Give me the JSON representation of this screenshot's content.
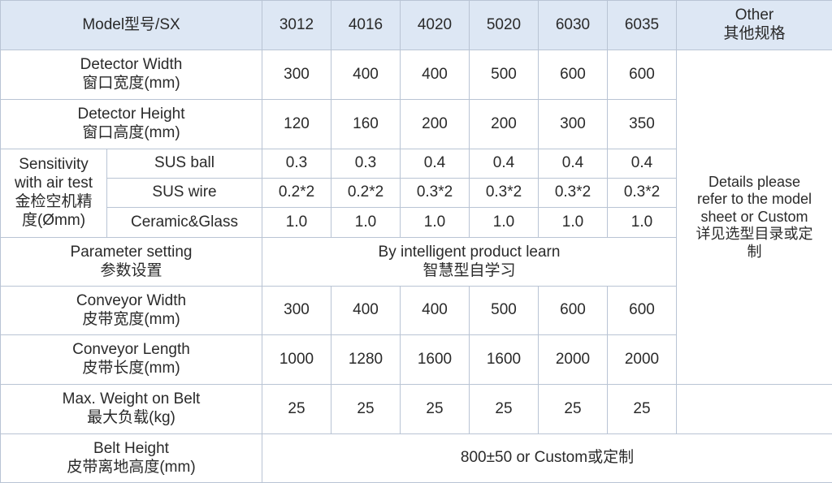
{
  "header": {
    "model": "Model型号/SX",
    "models": [
      "3012",
      "4016",
      "4020",
      "5020",
      "6030",
      "6035"
    ],
    "other_en": "Other",
    "other_cn": "其他规格"
  },
  "other_note": {
    "en1": "Details please",
    "en2": "refer to the model",
    "en3": "sheet or Custom",
    "cn1": "详见选型目录或定",
    "cn2": "制"
  },
  "rows": {
    "detector_width": {
      "en": "Detector Width",
      "cn": "窗口宽度(mm)",
      "values": [
        "300",
        "400",
        "400",
        "500",
        "600",
        "600"
      ]
    },
    "detector_height": {
      "en": "Detector Height",
      "cn": "窗口高度(mm)",
      "values": [
        "120",
        "160",
        "200",
        "200",
        "300",
        "350"
      ]
    },
    "sensitivity": {
      "l1": "Sensitivity",
      "l2": "with air test",
      "l3": "金检空机精",
      "l4": "度(Ømm)",
      "sus_ball": {
        "label": "SUS ball",
        "values": [
          "0.3",
          "0.3",
          "0.4",
          "0.4",
          "0.4",
          "0.4"
        ]
      },
      "sus_wire": {
        "label": "SUS wire",
        "values": [
          "0.2*2",
          "0.2*2",
          "0.3*2",
          "0.3*2",
          "0.3*2",
          "0.3*2"
        ]
      },
      "ceramic": {
        "label": "Ceramic&Glass",
        "values": [
          "1.0",
          "1.0",
          "1.0",
          "1.0",
          "1.0",
          "1.0"
        ]
      }
    },
    "parameter": {
      "en": "Parameter setting",
      "cn": "参数设置",
      "value_en": "By intelligent product learn",
      "value_cn": "智慧型自学习"
    },
    "conveyor_width": {
      "en": "Conveyor Width",
      "cn": "皮带宽度(mm)",
      "values": [
        "300",
        "400",
        "400",
        "500",
        "600",
        "600"
      ]
    },
    "conveyor_length": {
      "en": "Conveyor Length",
      "cn": "皮带长度(mm)",
      "values": [
        "1000",
        "1280",
        "1600",
        "1600",
        "2000",
        "2000"
      ]
    },
    "max_weight": {
      "en": "Max. Weight on Belt",
      "cn": "最大负载(kg)",
      "values": [
        "25",
        "25",
        "25",
        "25",
        "25",
        "25"
      ]
    },
    "belt_height": {
      "en": "Belt Height",
      "cn": "皮带离地高度(mm)",
      "value": "800±50 or Custom或定制"
    }
  }
}
